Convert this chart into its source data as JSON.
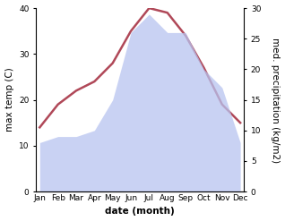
{
  "months": [
    "Jan",
    "Feb",
    "Mar",
    "Apr",
    "May",
    "Jun",
    "Jul",
    "Aug",
    "Sep",
    "Oct",
    "Nov",
    "Dec"
  ],
  "max_temp": [
    14,
    19,
    22,
    24,
    28,
    35,
    40,
    39,
    34,
    27,
    19,
    15
  ],
  "precipitation": [
    8,
    9,
    9,
    10,
    15,
    26,
    29,
    26,
    26,
    20,
    17,
    8
  ],
  "temp_color": "#b04858",
  "precip_color": "#b8c4f0",
  "precip_alpha": 0.75,
  "temp_ylim": [
    0,
    40
  ],
  "precip_ylim": [
    0,
    30
  ],
  "temp_yticks": [
    0,
    10,
    20,
    30,
    40
  ],
  "precip_yticks": [
    0,
    5,
    10,
    15,
    20,
    25,
    30
  ],
  "xlabel": "date (month)",
  "ylabel_left": "max temp (C)",
  "ylabel_right": "med. precipitation (kg/m2)",
  "bg_color": "#ffffff",
  "label_fontsize": 7.5,
  "tick_fontsize": 6.5,
  "linewidth": 1.8
}
